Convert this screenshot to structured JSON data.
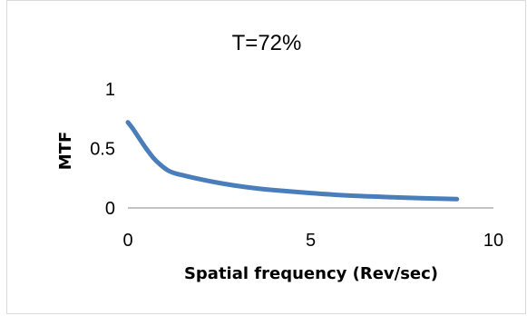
{
  "chart_data": {
    "type": "line",
    "title": "T=72%",
    "xlabel": "Spatial frequency (Rev/sec)",
    "ylabel": "MTF",
    "xlim": [
      0,
      10
    ],
    "ylim": [
      0,
      1
    ],
    "x_ticks": [
      "0",
      "5",
      "10"
    ],
    "y_ticks": [
      "0",
      "0.5",
      "1"
    ],
    "grid": false,
    "legend": "none",
    "series": [
      {
        "color": "#4a7ebb",
        "x": [
          0,
          0.15,
          0.3,
          0.5,
          0.7,
          0.9,
          1.1,
          1.3,
          1.5,
          2.0,
          2.5,
          3.0,
          3.5,
          4.0,
          5.0,
          6.0,
          7.0,
          8.0,
          9.0
        ],
        "y": [
          0.72,
          0.66,
          0.59,
          0.5,
          0.42,
          0.36,
          0.315,
          0.29,
          0.275,
          0.24,
          0.21,
          0.185,
          0.165,
          0.15,
          0.125,
          0.105,
          0.093,
          0.082,
          0.074
        ]
      }
    ]
  }
}
